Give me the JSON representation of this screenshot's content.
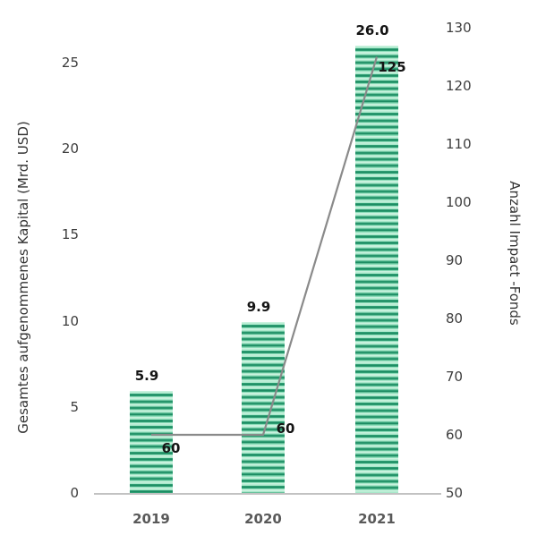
{
  "chart_data": {
    "type": "bar",
    "subtype": "combo_bar_line_dual_axis",
    "title": "",
    "categories": [
      "2019",
      "2020",
      "2021"
    ],
    "series": [
      {
        "name": "Gesamtes aufgenommenes Kapital (Mrd. USD)",
        "type": "bar",
        "axis": "left",
        "values": [
          5.9,
          9.9,
          26.0
        ],
        "data_labels": [
          "5.9",
          "9.9",
          "26.0"
        ]
      },
      {
        "name": "Anzahl Impact-Fonds",
        "type": "line",
        "axis": "right",
        "values": [
          60,
          60,
          125
        ],
        "data_labels": [
          "60",
          "60",
          "125"
        ]
      }
    ],
    "left_axis": {
      "title": "Gesamtes aufgenommenes Kapital (Mrd. USD)",
      "ticks": [
        0,
        5,
        10,
        15,
        20,
        25
      ],
      "range": [
        0,
        27
      ]
    },
    "right_axis": {
      "title": "Anzahl Impact -Fonds",
      "ticks": [
        50,
        60,
        70,
        80,
        90,
        100,
        110,
        120,
        130
      ],
      "range": [
        50,
        130
      ]
    },
    "grid": false,
    "legend": false
  },
  "colors": {
    "bar_stripe_light": "#c9f2de",
    "bar_stripe_mid": "#a9e8cb",
    "bar_stripe_mid2": "#8eddba",
    "bar_stripe_dark": "#2e9e73",
    "bar_stripe_darker": "#1d8c63",
    "line": "#8a8a8a",
    "baseline": "#c2c2c2",
    "tick_text": "#3d3d3d",
    "year_text": "#595959",
    "data_label_text": "#141414",
    "axis_title_text": "#333333",
    "background": "#ffffff"
  }
}
